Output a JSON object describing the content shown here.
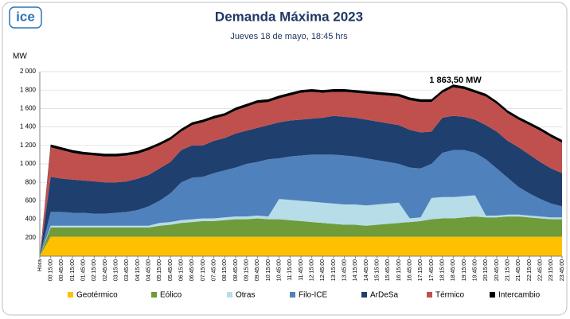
{
  "logo": "ice",
  "chart_data": {
    "type": "stacked-area",
    "title": "Demanda Máxima 2023",
    "subtitle": "Jueves 18 de mayo, 18:45 hrs",
    "y_label": "MW",
    "annotation": "1 863,50 MW",
    "categories": [
      "Hora",
      "00:15:00",
      "00:45:00",
      "01:15:00",
      "01:45:00",
      "02:15:00",
      "02:45:00",
      "03:15:00",
      "03:45:00",
      "04:15:00",
      "04:45:00",
      "05:15:00",
      "05:45:00",
      "06:15:00",
      "06:45:00",
      "07:15:00",
      "07:45:00",
      "08:15:00",
      "08:45:00",
      "09:15:00",
      "09:45:00",
      "10:15:00",
      "10:45:00",
      "11:15:00",
      "11:45:00",
      "12:15:00",
      "12:45:00",
      "13:15:00",
      "13:45:00",
      "14:15:00",
      "14:45:00",
      "15:15:00",
      "15:45:00",
      "16:15:00",
      "16:45:00",
      "17:15:00",
      "17:45:00",
      "18:15:00",
      "18:45:00",
      "19:15:00",
      "19:45:00",
      "20:15:00",
      "20:45:00",
      "21:15:00",
      "21:45:00",
      "22:15:00",
      "22:45:00",
      "23:15:00",
      "23:45:00"
    ],
    "ylim": [
      0,
      2000
    ],
    "yticks": [
      200,
      400,
      600,
      800,
      {
        "value": 1000,
        "label": "1 000"
      },
      {
        "value": 1200,
        "label": "1 200"
      },
      {
        "value": 1400,
        "label": "1 400"
      },
      {
        "value": 1600,
        "label": "1 600"
      },
      {
        "value": 1800,
        "label": "1 800"
      },
      {
        "value": 2000,
        "label": "2 000"
      }
    ],
    "grid": true,
    "legend": "bottom",
    "series": [
      {
        "name": "Geotérmico",
        "color": "#ffc000",
        "values": [
          0,
          210,
          210,
          210,
          210,
          210,
          210,
          210,
          210,
          210,
          210,
          210,
          210,
          210,
          210,
          210,
          210,
          210,
          210,
          210,
          210,
          210,
          210,
          210,
          210,
          210,
          210,
          210,
          210,
          210,
          210,
          210,
          210,
          210,
          210,
          210,
          210,
          210,
          210,
          210,
          210,
          210,
          210,
          210,
          210,
          210,
          210,
          210,
          210
        ]
      },
      {
        "name": "Eólico",
        "color": "#6f9b3b",
        "values": [
          0,
          100,
          100,
          100,
          100,
          100,
          100,
          100,
          100,
          100,
          100,
          120,
          130,
          150,
          160,
          170,
          170,
          180,
          190,
          190,
          200,
          190,
          190,
          180,
          170,
          160,
          150,
          140,
          130,
          130,
          120,
          130,
          140,
          150,
          160,
          170,
          190,
          200,
          200,
          210,
          220,
          210,
          210,
          220,
          220,
          210,
          200,
          190,
          190
        ]
      },
      {
        "name": "Otras",
        "color": "#b7dde8",
        "values": [
          0,
          20,
          20,
          20,
          20,
          20,
          20,
          20,
          20,
          20,
          20,
          30,
          30,
          30,
          30,
          30,
          30,
          30,
          30,
          30,
          30,
          30,
          220,
          220,
          220,
          220,
          220,
          220,
          220,
          220,
          220,
          220,
          220,
          220,
          40,
          40,
          230,
          230,
          230,
          230,
          230,
          20,
          20,
          20,
          20,
          20,
          20,
          20,
          20
        ]
      },
      {
        "name": "Filo-ICE",
        "color": "#4f81bd",
        "values": [
          0,
          150,
          150,
          140,
          140,
          130,
          130,
          140,
          150,
          170,
          210,
          240,
          310,
          410,
          450,
          450,
          490,
          510,
          530,
          570,
          580,
          620,
          440,
          470,
          490,
          510,
          520,
          530,
          530,
          520,
          510,
          480,
          450,
          420,
          550,
          530,
          370,
          480,
          510,
          500,
          460,
          610,
          510,
          400,
          300,
          240,
          190,
          150,
          120
        ]
      },
      {
        "name": "ArDeSa",
        "color": "#1f3f6e",
        "values": [
          0,
          380,
          360,
          360,
          350,
          350,
          340,
          330,
          330,
          340,
          340,
          350,
          340,
          350,
          350,
          340,
          350,
          350,
          370,
          360,
          370,
          370,
          390,
          390,
          390,
          390,
          400,
          420,
          420,
          420,
          420,
          420,
          420,
          420,
          410,
          390,
          350,
          380,
          370,
          360,
          360,
          370,
          400,
          400,
          430,
          420,
          400,
          380,
          360
        ]
      },
      {
        "name": "Térmico",
        "color": "#c0504d",
        "values": [
          0,
          320,
          310,
          290,
          280,
          280,
          280,
          280,
          280,
          270,
          270,
          250,
          240,
          200,
          220,
          250,
          240,
          240,
          250,
          260,
          270,
          250,
          260,
          270,
          290,
          290,
          270,
          260,
          270,
          270,
          280,
          290,
          300,
          310,
          320,
          330,
          320,
          270,
          310,
          300,
          290,
          310,
          300,
          300,
          300,
          320,
          340,
          340,
          330
        ]
      },
      {
        "name": "Intercambio",
        "color": "#000000",
        "values": [
          0,
          30,
          30,
          30,
          30,
          30,
          30,
          30,
          30,
          30,
          30,
          30,
          30,
          30,
          30,
          30,
          30,
          30,
          30,
          30,
          30,
          30,
          30,
          30,
          30,
          30,
          30,
          30,
          30,
          30,
          30,
          30,
          30,
          30,
          30,
          30,
          30,
          30,
          30,
          30,
          30,
          30,
          30,
          30,
          30,
          30,
          30,
          30,
          30
        ]
      }
    ]
  }
}
